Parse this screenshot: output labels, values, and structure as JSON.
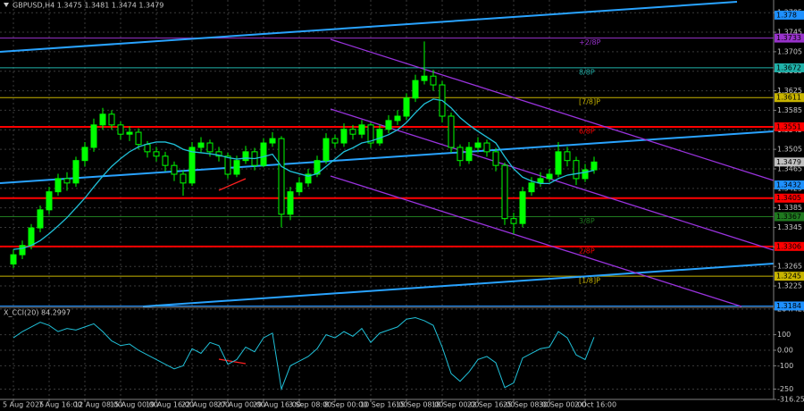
{
  "chart_data": {
    "type": "candlestick",
    "title": "GBPUSD,H4  1.3475 1.3481 1.3474 1.3479",
    "categories": [
      "5 Aug 2025",
      null,
      null,
      null,
      "7 Aug 16:00",
      null,
      null,
      null,
      "12 Aug 08:00",
      null,
      null,
      null,
      "15 Aug 00:00",
      null,
      null,
      null,
      "19 Aug 16:00",
      null,
      null,
      null,
      "22 Aug 08:00",
      null,
      null,
      null,
      "27 Aug 00:00",
      null,
      null,
      null,
      "29 Aug 16:00",
      null,
      null,
      null,
      "3 Sep 08:00",
      null,
      null,
      null,
      "8 Sep 00:00",
      null,
      null,
      null,
      "10 Sep 16:00",
      null,
      null,
      null,
      "15 Sep 08:00",
      null,
      null,
      null,
      "18 Sep 00:00",
      null,
      null,
      null,
      "22 Sep 16:00",
      null,
      null,
      null,
      "25 Sep 08:00",
      null,
      null,
      null,
      "30 Sep 00:00",
      null,
      null,
      null,
      "2 Oct 16:00",
      null
    ],
    "open": [
      1.327,
      1.3289,
      1.3308,
      1.3344,
      1.3381,
      1.3418,
      1.3445,
      1.3436,
      1.3482,
      1.3509,
      1.3555,
      1.3577,
      1.3555,
      1.3536,
      1.354,
      1.3515,
      1.35,
      1.3491,
      1.3472,
      1.3454,
      1.3436,
      1.3509,
      1.3518,
      1.35,
      1.3491,
      1.3454,
      1.3482,
      1.35,
      1.3472,
      1.3518,
      1.3527,
      1.3372,
      1.3418,
      1.3436,
      1.3454,
      1.3482,
      1.3527,
      1.3518,
      1.3546,
      1.3536,
      1.3555,
      1.3518,
      1.3546,
      1.3564,
      1.3573,
      1.361,
      1.3646,
      1.3655,
      1.3637,
      1.3573,
      1.3509,
      1.3482,
      1.3509,
      1.3518,
      1.35,
      1.3472,
      1.3363,
      1.3353,
      1.3418,
      1.3436,
      1.3445,
      1.3454,
      1.35,
      1.3482,
      1.3445,
      1.3463
    ],
    "high": [
      1.33,
      1.3318,
      1.3352,
      1.339,
      1.3428,
      1.3455,
      1.3458,
      1.349,
      1.352,
      1.3568,
      1.359,
      1.3585,
      1.3562,
      1.3552,
      1.3548,
      1.3522,
      1.351,
      1.35,
      1.348,
      1.3462,
      1.352,
      1.353,
      1.3525,
      1.351,
      1.3498,
      1.3492,
      1.3512,
      1.3508,
      1.3528,
      1.354,
      1.3532,
      1.3428,
      1.3448,
      1.3465,
      1.3492,
      1.3538,
      1.3535,
      1.3558,
      1.3555,
      1.3565,
      1.356,
      1.3556,
      1.3575,
      1.3585,
      1.362,
      1.3658,
      1.3726,
      1.3668,
      1.3645,
      1.358,
      1.3515,
      1.352,
      1.353,
      1.3525,
      1.3508,
      1.3478,
      1.3375,
      1.3428,
      1.3448,
      1.3458,
      1.3465,
      1.352,
      1.351,
      1.349,
      1.3475,
      1.349
    ],
    "low": [
      1.3262,
      1.328,
      1.33,
      1.3335,
      1.3372,
      1.341,
      1.342,
      1.3428,
      1.347,
      1.35,
      1.3545,
      1.3545,
      1.3525,
      1.3522,
      1.3505,
      1.3488,
      1.348,
      1.346,
      1.344,
      1.341,
      1.343,
      1.3498,
      1.349,
      1.348,
      1.3445,
      1.3448,
      1.3475,
      1.3462,
      1.3468,
      1.351,
      1.3345,
      1.336,
      1.341,
      1.3428,
      1.3448,
      1.3475,
      1.3508,
      1.351,
      1.3525,
      1.3528,
      1.3508,
      1.3512,
      1.3538,
      1.3555,
      1.3565,
      1.3602,
      1.3638,
      1.3625,
      1.356,
      1.3498,
      1.347,
      1.3475,
      1.35,
      1.349,
      1.346,
      1.335,
      1.3331,
      1.3345,
      1.341,
      1.3428,
      1.3438,
      1.3448,
      1.347,
      1.3432,
      1.3438,
      1.3455
    ],
    "close": [
      1.3289,
      1.3308,
      1.3344,
      1.3381,
      1.3418,
      1.3445,
      1.3436,
      1.3482,
      1.3509,
      1.3555,
      1.3577,
      1.3555,
      1.3536,
      1.354,
      1.3515,
      1.35,
      1.3491,
      1.3472,
      1.3454,
      1.3436,
      1.3509,
      1.3518,
      1.35,
      1.3491,
      1.3454,
      1.3482,
      1.35,
      1.3472,
      1.3518,
      1.3527,
      1.3372,
      1.3418,
      1.3436,
      1.3454,
      1.3482,
      1.3527,
      1.3518,
      1.3546,
      1.3536,
      1.3555,
      1.3518,
      1.3546,
      1.3564,
      1.3573,
      1.361,
      1.3646,
      1.3655,
      1.3637,
      1.3573,
      1.3509,
      1.3482,
      1.3509,
      1.3518,
      1.35,
      1.3472,
      1.3363,
      1.3353,
      1.3418,
      1.3436,
      1.3445,
      1.3454,
      1.35,
      1.3482,
      1.3445,
      1.3463,
      1.3479
    ],
    "up_color": "#00ff00",
    "down_color": "#000000",
    "wick_color": "#00ff00",
    "ma_values": [
      1.33,
      1.3302,
      1.3308,
      1.3318,
      1.3332,
      1.3348,
      1.3365,
      1.3385,
      1.3405,
      1.3428,
      1.345,
      1.347,
      1.3486,
      1.35,
      1.351,
      1.3516,
      1.352,
      1.352,
      1.3515,
      1.3505,
      1.35,
      1.3498,
      1.3496,
      1.3493,
      1.3488,
      1.3485,
      1.3487,
      1.3486,
      1.349,
      1.3495,
      1.347,
      1.346,
      1.3455,
      1.345,
      1.3455,
      1.347,
      1.3485,
      1.35,
      1.3508,
      1.3518,
      1.3522,
      1.3528,
      1.3535,
      1.3545,
      1.356,
      1.358,
      1.3598,
      1.3608,
      1.3605,
      1.359,
      1.357,
      1.3555,
      1.3542,
      1.353,
      1.3518,
      1.349,
      1.3465,
      1.3448,
      1.344,
      1.3435,
      1.3435,
      1.3445,
      1.3452,
      1.3455,
      1.3458,
      1.3462
    ],
    "ma_color": "#20c0d8",
    "ylim": [
      1.3183,
      1.3811
    ],
    "yticks": [
      1.3785,
      1.3745,
      1.3705,
      1.3665,
      1.3625,
      1.3585,
      1.3545,
      1.3505,
      1.3465,
      1.3425,
      1.3385,
      1.3345,
      1.3305,
      1.3265,
      1.3225
    ],
    "grid": true,
    "levels": [
      {
        "value": 1.3733,
        "label": "+2/8P",
        "color": "#9932cc"
      },
      {
        "value": 1.3672,
        "label": "8/8P",
        "color": "#20b2aa"
      },
      {
        "value": 1.3611,
        "label": "[7/8]P",
        "color": "#c8b400"
      },
      {
        "value": 1.3551,
        "label": "6/8P",
        "color": "#ff0000"
      },
      {
        "value": 1.3405,
        "color": "#ff0000"
      },
      {
        "value": 1.3367,
        "label": "3/8P",
        "color": "#1f7a1f"
      },
      {
        "value": 1.3306,
        "label": "2/8P",
        "color": "#ff0000"
      },
      {
        "value": 1.3245,
        "label": "[1/8]P",
        "color": "#c8b400"
      },
      {
        "value": 1.3184,
        "color": "#1e90ff"
      }
    ],
    "price_tags": [
      {
        "value": 1.378,
        "color": "#1e90ff"
      },
      {
        "value": 1.3479,
        "color": "#c0c0c0"
      },
      {
        "value": 1.3432,
        "color": "#1e90ff"
      }
    ],
    "indicator": {
      "type": "line",
      "title": "X_CCI(20) 84.2997",
      "color": "#20c0d8",
      "values": [
        80,
        120,
        150,
        180,
        160,
        120,
        140,
        130,
        150,
        170,
        120,
        60,
        30,
        40,
        0,
        -30,
        -60,
        -90,
        -120,
        -100,
        10,
        -20,
        50,
        30,
        -90,
        -60,
        20,
        -10,
        80,
        110,
        -250,
        -100,
        -70,
        -40,
        10,
        100,
        80,
        120,
        90,
        140,
        50,
        110,
        130,
        150,
        200,
        210,
        190,
        160,
        20,
        -150,
        -200,
        -140,
        -60,
        -40,
        -80,
        -240,
        -210,
        -50,
        -20,
        10,
        20,
        120,
        80,
        -30,
        -60,
        84.2997
      ],
      "ylim": [
        -316.257,
        264.429
      ],
      "yticks": [
        264.429,
        100,
        {
          "value": 0,
          "label": "0.00"
        },
        -100,
        -250,
        -316.257
      ]
    }
  }
}
